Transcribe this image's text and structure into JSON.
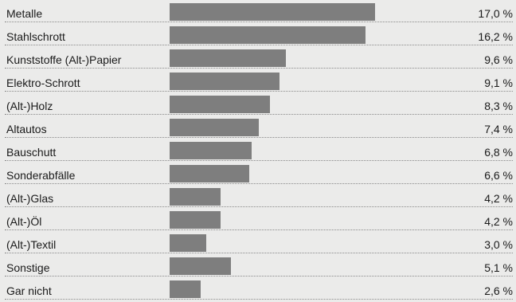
{
  "chart_data": {
    "type": "bar",
    "orientation": "horizontal",
    "title": "",
    "xlabel": "",
    "ylabel": "",
    "xlim": [
      0,
      17.0
    ],
    "grid": false,
    "bar_color": "#7e7e7e",
    "background_color": "#ebebea",
    "categories": [
      "Metalle",
      "Stahlschrott",
      "Kunststoffe (Alt-)Papier",
      "Elektro-Schrott",
      "(Alt-)Holz",
      "Altautos",
      "Bauschutt",
      "Sonderabfälle",
      "(Alt-)Glas",
      "(Alt-)Öl",
      "(Alt-)Textil",
      "Sonstige",
      "Gar nicht"
    ],
    "values": [
      17.0,
      16.2,
      9.6,
      9.1,
      8.3,
      7.4,
      6.8,
      6.6,
      4.2,
      4.2,
      3.0,
      5.1,
      2.6
    ],
    "value_labels": [
      "17,0 %",
      "16,2 %",
      "9,6 %",
      "9,1 %",
      "8,3 %",
      "7,4 %",
      "6,8 %",
      "6,6 %",
      "4,2 %",
      "4,2 %",
      "3,0 %",
      "5,1 %",
      "2,6 %"
    ]
  }
}
